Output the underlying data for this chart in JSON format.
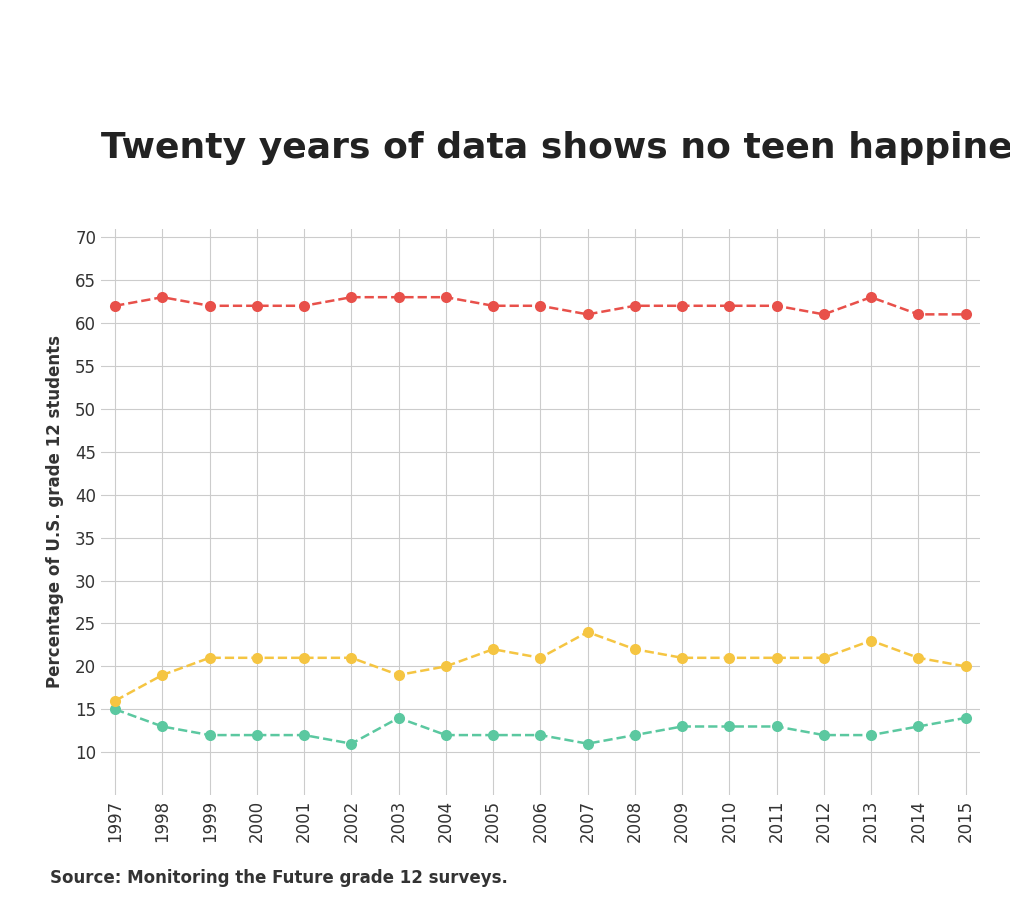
{
  "title": "Twenty years of data shows no teen happiness crisis",
  "ylabel": "Percentage of U.S. grade 12 students",
  "source": "Source: Monitoring the Future grade 12 surveys.",
  "years": [
    1997,
    1998,
    1999,
    2000,
    2001,
    2002,
    2003,
    2004,
    2005,
    2006,
    2007,
    2008,
    2009,
    2010,
    2011,
    2012,
    2013,
    2014,
    2015
  ],
  "not_happy": [
    15,
    13,
    12,
    12,
    12,
    11,
    14,
    12,
    12,
    12,
    11,
    12,
    13,
    13,
    13,
    12,
    12,
    13,
    14
  ],
  "pretty_happy": [
    62,
    63,
    62,
    62,
    62,
    63,
    63,
    63,
    62,
    62,
    61,
    62,
    62,
    62,
    62,
    61,
    63,
    61,
    61
  ],
  "very_happy": [
    16,
    19,
    21,
    21,
    21,
    21,
    19,
    20,
    22,
    21,
    24,
    22,
    21,
    21,
    21,
    21,
    23,
    21,
    20
  ],
  "not_happy_color": "#5bc8a0",
  "pretty_happy_color": "#e8504a",
  "very_happy_color": "#f5c542",
  "ylim_min": 5,
  "ylim_max": 71,
  "yticks": [
    10,
    15,
    20,
    25,
    30,
    35,
    40,
    45,
    50,
    55,
    60,
    65,
    70
  ],
  "background_color": "#ffffff",
  "grid_color": "#cccccc",
  "title_fontsize": 26,
  "ylabel_fontsize": 12,
  "tick_fontsize": 12,
  "legend_fontsize": 12,
  "source_fontsize": 12,
  "linewidth": 1.8,
  "markersize": 8
}
